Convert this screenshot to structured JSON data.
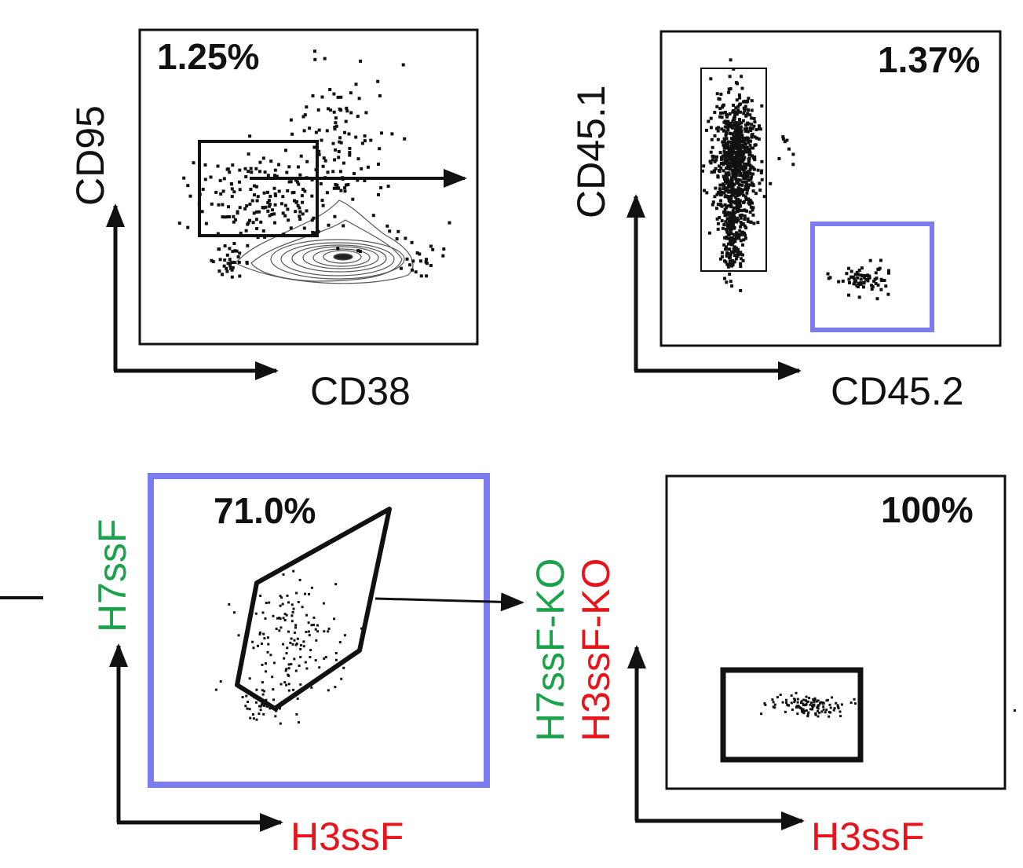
{
  "colors": {
    "black": "#111111",
    "gate_blue": "#7b7cf0",
    "green": "#1aa34a",
    "red": "#e8141b"
  },
  "panels": [
    {
      "id": "p1",
      "percent": "1.25%",
      "x_label": "CD38",
      "y_label": "CD95",
      "x_label_color": "black",
      "y_label_color": "black"
    },
    {
      "id": "p2",
      "percent": "1.37%",
      "x_label": "CD45.2",
      "y_label": "CD45.1",
      "x_label_color": "black",
      "y_label_color": "black"
    },
    {
      "id": "p3",
      "percent": "71.0%",
      "x_label": "H3ssF",
      "y_label": "H7ssF",
      "x_label_color": "red",
      "y_label_color": "green"
    },
    {
      "id": "p4",
      "percent": "100%",
      "x_label": "H3ssF",
      "y_label_line1": "H7ssF-KO",
      "y_label_line2": "H3ssF-KO",
      "x_label_color": "red",
      "y_label_line1_color": "green",
      "y_label_line2_color": "red"
    }
  ]
}
